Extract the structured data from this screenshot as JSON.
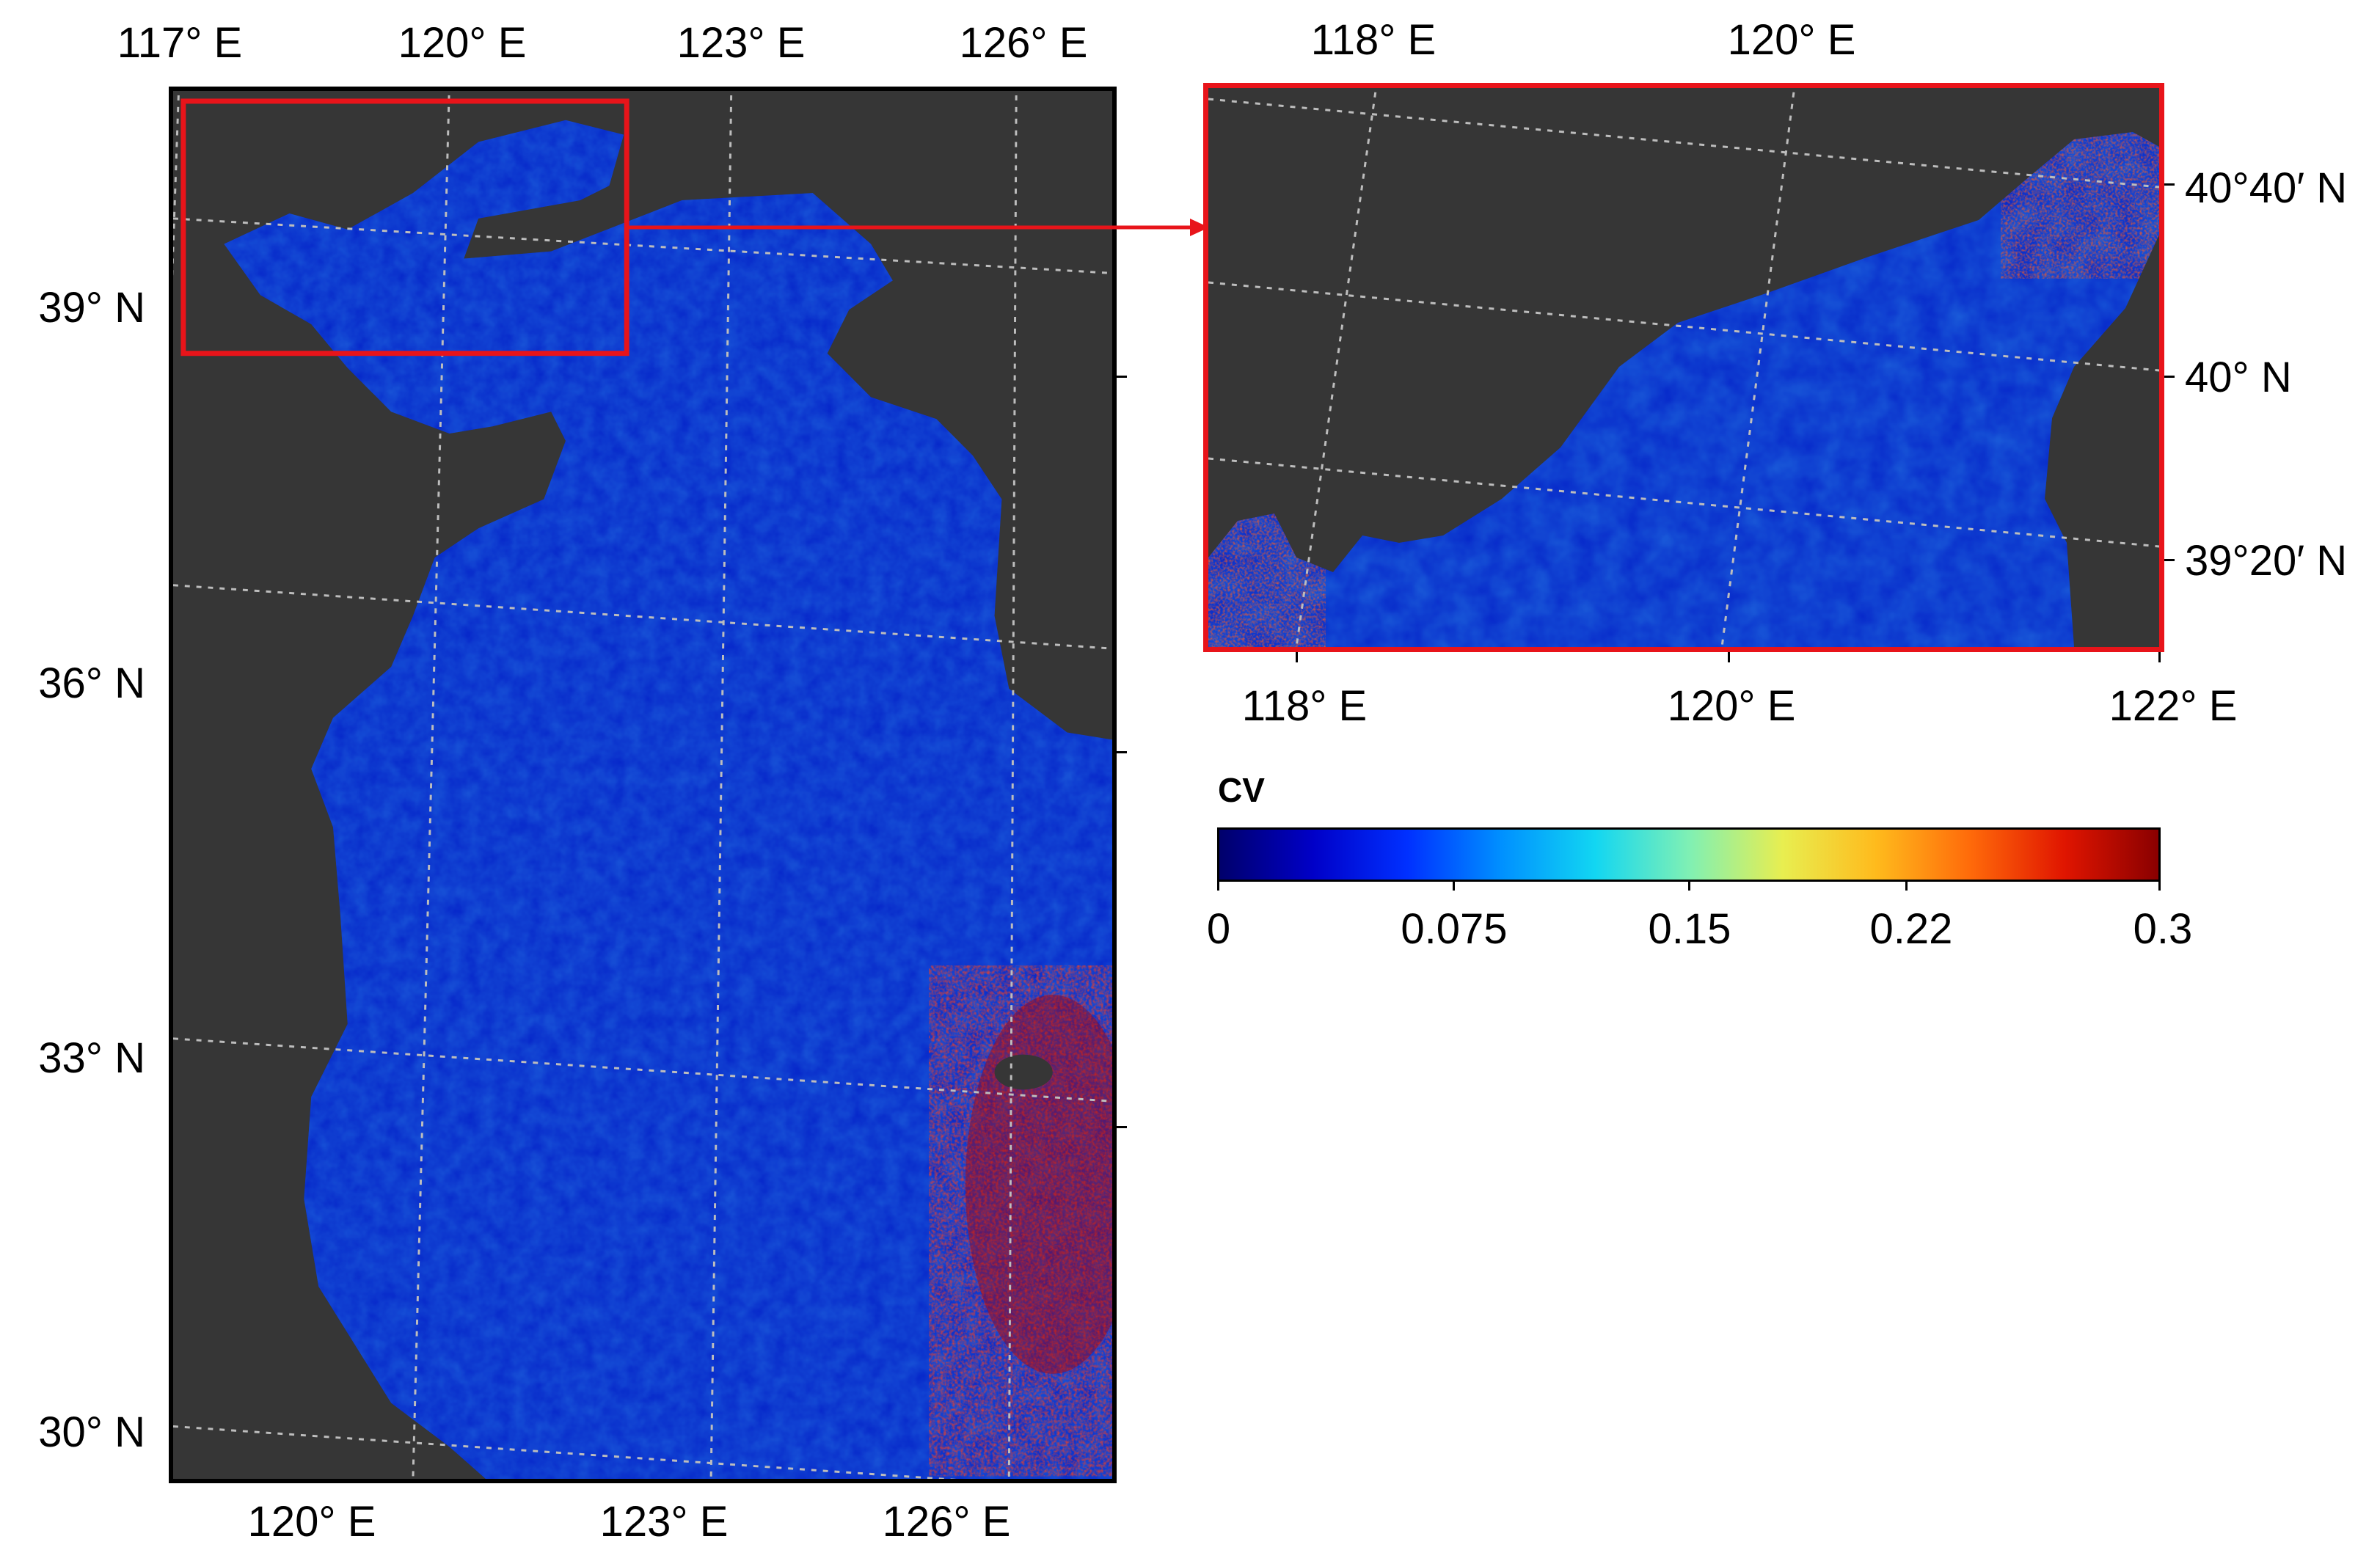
{
  "main_map": {
    "top_lon_labels": [
      "117° E",
      "120° E",
      "123° E",
      "126° E"
    ],
    "bottom_lon_labels": [
      "120° E",
      "123° E",
      "126° E"
    ],
    "lat_labels": [
      "39° N",
      "36° N",
      "33° N",
      "30° N"
    ]
  },
  "inset_map": {
    "top_lon_labels": [
      "118° E",
      "120° E"
    ],
    "bottom_lon_labels": [
      "118° E",
      "120° E",
      "122° E"
    ],
    "lat_labels": [
      "40°40′ N",
      "40° N",
      "39°20′ N"
    ]
  },
  "colorbar": {
    "title": "CV",
    "tick_labels": [
      "0",
      "0.075",
      "0.15",
      "0.22",
      "0.3"
    ],
    "colors": [
      "#00006b",
      "#0000c8",
      "#0030ff",
      "#0090ff",
      "#12d6f2",
      "#7ff0b4",
      "#e8ee50",
      "#ffba1c",
      "#ff6a0a",
      "#e01500",
      "#8a0000"
    ]
  },
  "colors": {
    "land": "#363636",
    "highlight": "#e8141a",
    "sea_low": "#0a2fd6",
    "sea_high": "#b00000"
  }
}
